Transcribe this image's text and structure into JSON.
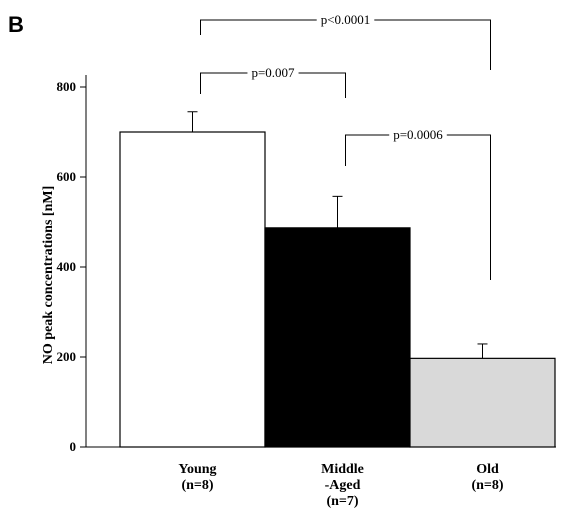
{
  "panel_label": "B",
  "chart_data": {
    "type": "bar",
    "categories": [
      [
        "Young",
        "(n=8)"
      ],
      [
        "Middle",
        "-Aged",
        "(n=7)"
      ],
      [
        "Old",
        "(n=8)"
      ]
    ],
    "values": [
      700,
      487,
      197
    ],
    "errors": [
      45,
      70,
      32
    ],
    "bar_colors": [
      "#ffffff",
      "#000000",
      "#d9d9d9"
    ],
    "ylabel": "NO peak concentrations [nM]",
    "ylim": [
      0,
      820
    ],
    "yticks": [
      0,
      200,
      400,
      600,
      800
    ],
    "comparisons": [
      {
        "from": 0,
        "to": 2,
        "label": "p<0.0001"
      },
      {
        "from": 0,
        "to": 1,
        "label": "p=0.007"
      },
      {
        "from": 1,
        "to": 2,
        "label": "p=0.0006"
      }
    ]
  }
}
